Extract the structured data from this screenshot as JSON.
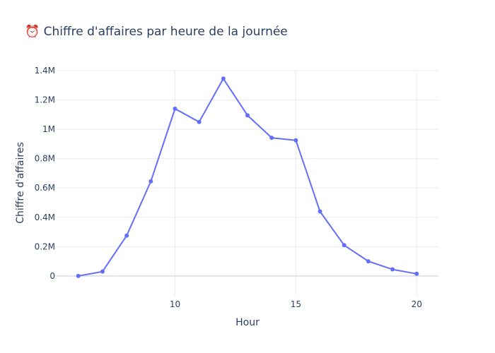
{
  "chart_data": {
    "type": "line",
    "title": "⏰ Chiffre d'affaires par heure de la journée",
    "xlabel": "Hour",
    "ylabel": "Chiffre d'affaires",
    "xlim": [
      5.1,
      20.9
    ],
    "ylim": [
      -140000,
      1400000
    ],
    "x_ticks": [
      10,
      15,
      20
    ],
    "y_ticks": [
      0,
      200000,
      400000,
      600000,
      800000,
      1000000,
      1200000,
      1400000
    ],
    "y_tick_labels": [
      "0",
      "0.2M",
      "0.4M",
      "0.6M",
      "0.8M",
      "1M",
      "1.2M",
      "1.4M"
    ],
    "grid": true,
    "color": "#636efa",
    "series": [
      {
        "x": [
          6,
          7,
          8,
          9,
          10,
          11,
          12,
          13,
          14,
          15,
          16,
          17,
          18,
          19,
          20
        ],
        "y": [
          0,
          30000,
          275000,
          645000,
          1140000,
          1050000,
          1345000,
          1095000,
          942000,
          925000,
          440000,
          210000,
          100000,
          45000,
          15000
        ]
      }
    ]
  }
}
